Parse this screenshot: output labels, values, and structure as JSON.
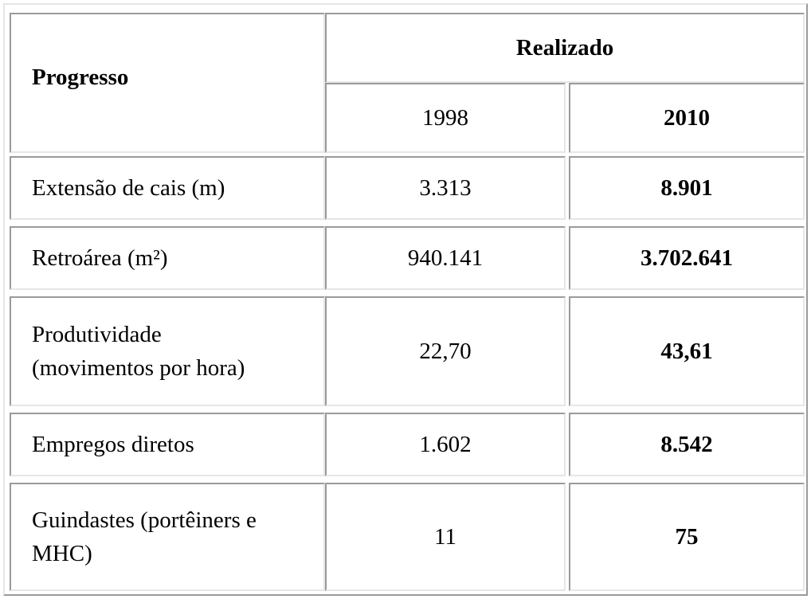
{
  "table": {
    "header": {
      "row_label": "Progresso",
      "group_label": "Realizado",
      "year_a": "1998",
      "year_b": "2010"
    },
    "rows": [
      {
        "label": "Extensão de cais (m)",
        "v1998": "3.313",
        "v2010": "8.901"
      },
      {
        "label": "Retroárea (m²)",
        "v1998": "940.141",
        "v2010": "3.702.641"
      },
      {
        "label_line1": "Produtividade",
        "label_line2": "(movimentos por hora)",
        "v1998": "22,70",
        "v2010": "43,61"
      },
      {
        "label": "Empregos diretos",
        "v1998": "1.602",
        "v2010": "8.542"
      },
      {
        "label_line1": "Guindastes (portêiners e",
        "label_line2": "MHC)",
        "v1998": "11",
        "v2010": "75"
      }
    ]
  }
}
